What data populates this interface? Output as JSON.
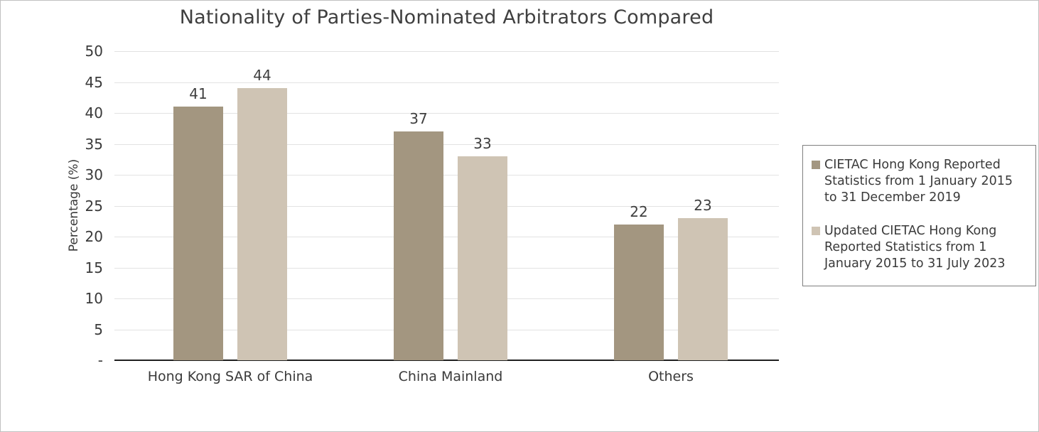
{
  "window": {
    "background": "#ffffff",
    "border_color": "#c0c0c0"
  },
  "colors": {
    "title_text": "#3f3f3f",
    "axis_text": "#3a3a3a",
    "gridline": "#e2e2e2",
    "axis_line": "#1f1f1f",
    "legend_border": "#7f7f7f",
    "series1": "#a39680",
    "series2": "#cfc4b4"
  },
  "chart_data": {
    "type": "bar",
    "title": "Nationality of Parties-Nominated Arbitrators Compared",
    "xlabel": "",
    "ylabel": "Percentage (%)",
    "categories": [
      "Hong Kong SAR of China",
      "China Mainland",
      "Others"
    ],
    "series": [
      {
        "name": "CIETAC Hong Kong Reported Statistics from 1 January 2015 to 31 December 2019",
        "color": "#a39680",
        "values": [
          41,
          37,
          22
        ]
      },
      {
        "name": "Updated CIETAC Hong Kong Reported Statistics from 1 January 2015 to 31 July 2023",
        "color": "#cfc4b4",
        "values": [
          44,
          33,
          23
        ]
      }
    ],
    "ylim": [
      0,
      50
    ],
    "ytick_step": 5,
    "zero_tick_label": "-",
    "grid": true,
    "data_labels": true,
    "legend_position": "right"
  }
}
